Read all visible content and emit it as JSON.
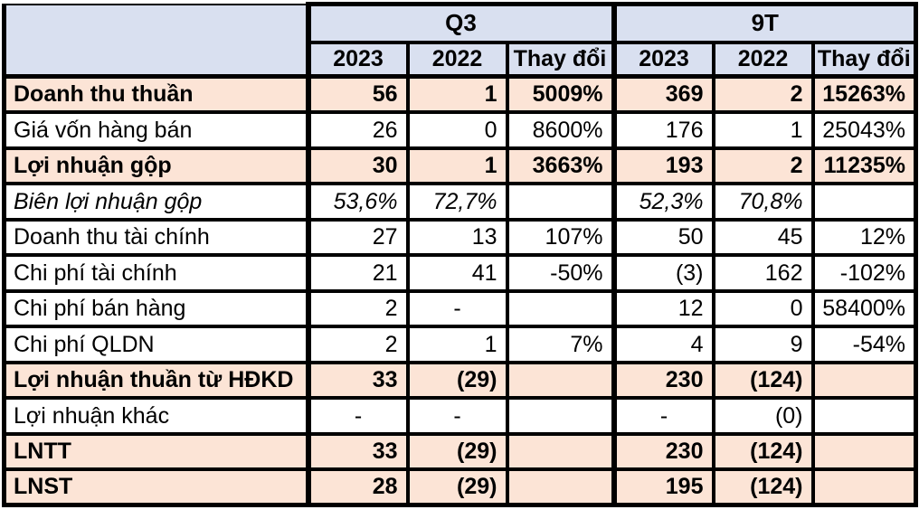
{
  "chart_data": {
    "type": "table",
    "column_groups": [
      "Q3",
      "9T"
    ],
    "subheaders": [
      "2023",
      "2022",
      "Thay đổi",
      "2023",
      "2022",
      "Thay đổi"
    ],
    "corner_label": "",
    "rows": [
      {
        "label": "Doanh thu thuần",
        "style": "highlight",
        "values": [
          "56",
          "1",
          "5009%",
          "369",
          "2",
          "15263%"
        ]
      },
      {
        "label": "Giá vốn hàng bán",
        "style": "normal",
        "values": [
          "26",
          "0",
          "8600%",
          "176",
          "1",
          "25043%"
        ]
      },
      {
        "label": "Lợi nhuận gộp",
        "style": "highlight",
        "values": [
          "30",
          "1",
          "3663%",
          "193",
          "2",
          "11235%"
        ]
      },
      {
        "label": "Biên lợi nhuận gộp",
        "style": "italic",
        "values": [
          "53,6%",
          "72,7%",
          "",
          "52,3%",
          "70,8%",
          ""
        ]
      },
      {
        "label": "Doanh thu tài chính",
        "style": "normal",
        "values": [
          "27",
          "13",
          "107%",
          "50",
          "45",
          "12%"
        ]
      },
      {
        "label": "Chi phí tài chính",
        "style": "normal",
        "values": [
          "21",
          "41",
          "-50%",
          "(3)",
          "162",
          "-102%"
        ]
      },
      {
        "label": "Chi phí bán hàng",
        "style": "normal",
        "values": [
          "2",
          "-",
          "",
          "12",
          "0",
          "58400%"
        ]
      },
      {
        "label": "Chi phí QLDN",
        "style": "normal",
        "values": [
          "2",
          "1",
          "7%",
          "4",
          "9",
          "-54%"
        ]
      },
      {
        "label": "Lợi nhuận thuần từ HĐKD",
        "style": "highlight",
        "values": [
          "33",
          "(29)",
          "",
          "230",
          "(124)",
          ""
        ]
      },
      {
        "label": "Lợi nhuận khác",
        "style": "normal",
        "values": [
          "-",
          "-",
          "",
          "-",
          "(0)",
          ""
        ]
      },
      {
        "label": "LNTT",
        "style": "highlight",
        "values": [
          "33",
          "(29)",
          "",
          "230",
          "(124)",
          ""
        ]
      },
      {
        "label": "LNST",
        "style": "highlight",
        "values": [
          "28",
          "(29)",
          "",
          "195",
          "(124)",
          ""
        ]
      }
    ],
    "colors": {
      "header_bg": "#D9E0F0",
      "highlight_bg": "#FCE4D6",
      "border": "#000000",
      "row_bg": "#FFFFFF",
      "text": "#000000"
    }
  }
}
